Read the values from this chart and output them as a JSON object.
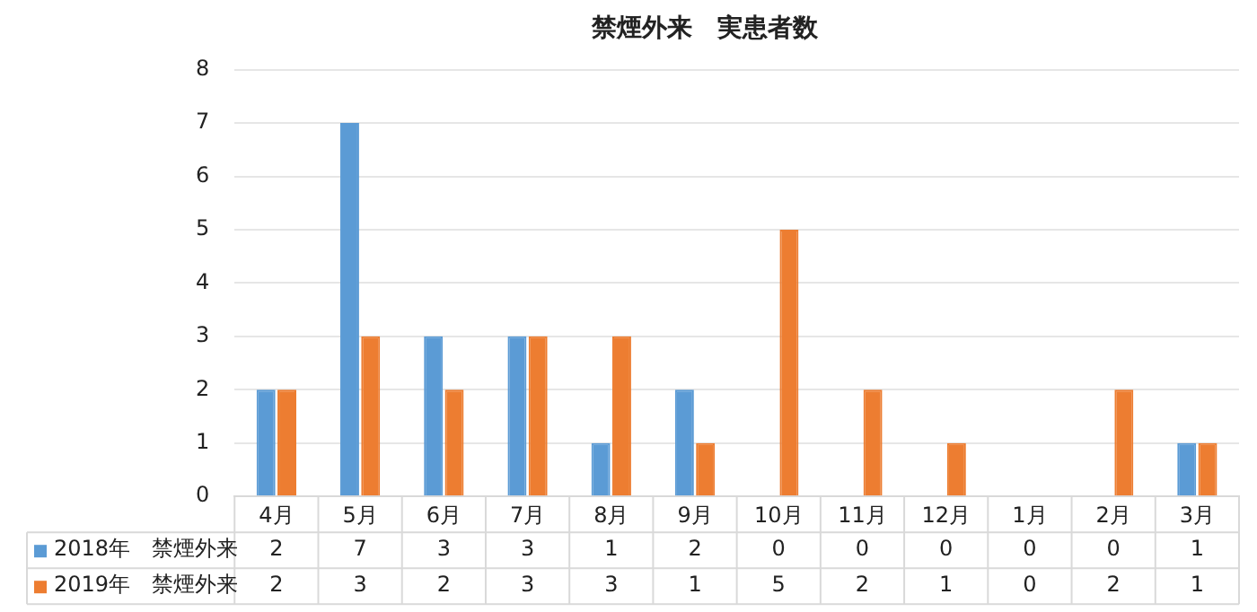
{
  "chart_data": {
    "type": "bar",
    "title": "禁煙外来　実患者数",
    "categories": [
      "4月",
      "5月",
      "6月",
      "7月",
      "8月",
      "9月",
      "10月",
      "11月",
      "12月",
      "1月",
      "2月",
      "3月"
    ],
    "series": [
      {
        "name": "2018年　禁煙外来",
        "color": "#5b9bd5",
        "values": [
          2,
          7,
          3,
          3,
          1,
          2,
          0,
          0,
          0,
          0,
          0,
          1
        ]
      },
      {
        "name": "2019年　禁煙外来",
        "color": "#ed7d31",
        "values": [
          2,
          3,
          2,
          3,
          3,
          1,
          5,
          2,
          1,
          0,
          2,
          1
        ]
      }
    ],
    "ylim": [
      0,
      8
    ],
    "yticks": [
      0,
      1,
      2,
      3,
      4,
      5,
      6,
      7,
      8
    ],
    "grid": "y",
    "legend": "bottom",
    "data_labels": true
  }
}
